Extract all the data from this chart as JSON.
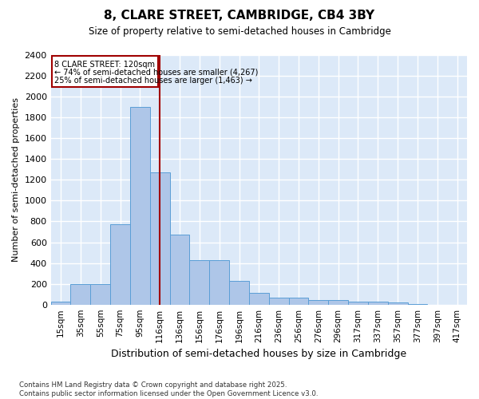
{
  "title": "8, CLARE STREET, CAMBRIDGE, CB4 3BY",
  "subtitle": "Size of property relative to semi-detached houses in Cambridge",
  "xlabel": "Distribution of semi-detached houses by size in Cambridge",
  "ylabel": "Number of semi-detached properties",
  "bar_values": [
    25,
    200,
    200,
    775,
    1900,
    1275,
    675,
    430,
    430,
    225,
    110,
    65,
    65,
    40,
    40,
    30,
    25,
    20,
    5,
    0,
    0
  ],
  "bin_labels": [
    "15sqm",
    "35sqm",
    "55sqm",
    "75sqm",
    "95sqm",
    "116sqm",
    "136sqm",
    "156sqm",
    "176sqm",
    "196sqm",
    "216sqm",
    "236sqm",
    "256sqm",
    "276sqm",
    "296sqm",
    "317sqm",
    "337sqm",
    "357sqm",
    "377sqm",
    "397sqm",
    "417sqm"
  ],
  "bar_color": "#aec6e8",
  "bar_edge_color": "#5a9ed6",
  "annotation_text_line1": "8 CLARE STREET: 120sqm",
  "annotation_text_line2": "← 74% of semi-detached houses are smaller (4,267)",
  "annotation_text_line3": "25% of semi-detached houses are larger (1,463) →",
  "vline_color": "#a00000",
  "vline_x": 5,
  "annotation_box_color": "#a00000",
  "ylim": [
    0,
    2400
  ],
  "yticks": [
    0,
    200,
    400,
    600,
    800,
    1000,
    1200,
    1400,
    1600,
    1800,
    2000,
    2200,
    2400
  ],
  "background_color": "#dce9f8",
  "grid_color": "#ffffff",
  "footer_line1": "Contains HM Land Registry data © Crown copyright and database right 2025.",
  "footer_line2": "Contains public sector information licensed under the Open Government Licence v3.0."
}
